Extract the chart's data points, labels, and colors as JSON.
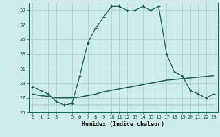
{
  "hours": [
    0,
    1,
    2,
    3,
    4,
    5,
    6,
    7,
    8,
    9,
    10,
    11,
    12,
    13,
    14,
    15,
    16,
    17,
    18,
    19,
    20,
    21,
    22,
    23
  ],
  "humidex": [
    28.5,
    28.0,
    27.5,
    26.5,
    26.0,
    26.2,
    30.0,
    34.5,
    36.5,
    38.0,
    39.5,
    39.5,
    39.0,
    39.0,
    39.5,
    39.0,
    39.5,
    33.0,
    30.5,
    30.0,
    28.0,
    27.5,
    27.0,
    27.5
  ],
  "temp_flat": [
    26.0,
    26.0,
    26.0,
    26.0,
    26.0,
    26.0,
    26.0,
    26.0,
    26.0,
    26.0,
    26.0,
    26.0,
    26.0,
    26.0,
    26.0,
    26.0,
    26.0,
    26.0,
    26.0,
    26.0,
    26.0,
    26.0,
    26.0,
    26.0
  ],
  "temp_diag": [
    27.5,
    27.3,
    27.2,
    27.0,
    27.0,
    27.0,
    27.1,
    27.3,
    27.5,
    27.8,
    28.0,
    28.2,
    28.4,
    28.6,
    28.8,
    29.0,
    29.2,
    29.4,
    29.5,
    29.6,
    29.7,
    29.8,
    29.9,
    30.0
  ],
  "bg_color": "#ceecea",
  "line_color": "#1a5f5a",
  "grid_color": "#aacfcc",
  "xlabel": "Humidex (Indice chaleur)",
  "ylim": [
    25,
    40
  ],
  "yticks": [
    25,
    27,
    29,
    31,
    33,
    35,
    37,
    39
  ],
  "xticks": [
    0,
    1,
    2,
    3,
    5,
    6,
    7,
    8,
    9,
    10,
    11,
    12,
    13,
    14,
    15,
    16,
    17,
    18,
    19,
    20,
    21,
    22,
    23
  ],
  "xlabel_fontsize": 6.0,
  "tick_fontsize": 5.2
}
